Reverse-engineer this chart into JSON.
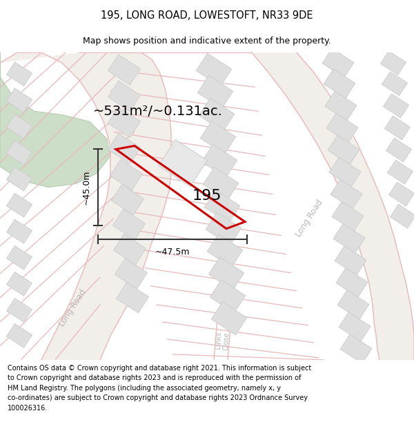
{
  "title_line1": "195, LONG ROAD, LOWESTOFT, NR33 9DE",
  "title_line2": "Map shows position and indicative extent of the property.",
  "footer_text": "Contains OS data © Crown copyright and database right 2021. This information is subject\nto Crown copyright and database rights 2023 and is reproduced with the permission of\nHM Land Registry. The polygons (including the associated geometry, namely x, y\nco-ordinates) are subject to Crown copyright and database rights 2023 Ordnance Survey\n100026316.",
  "map_bg": "#f7f4f0",
  "road_line_color": "#e8b8b8",
  "road_line_lw": 1.0,
  "building_color": "#dedede",
  "building_outline": "#cccccc",
  "green_color": "#cddec8",
  "green_outline": "#b8ccb4",
  "plot_color": "#cc0000",
  "plot_lw": 2.2,
  "area_text": "~531m²/~0.131ac.",
  "dim_v_text": "~45.0m",
  "dim_h_text": "~47.5m",
  "number_text": "195",
  "road_label_color": "#b8b8b8",
  "annot_color": "#333333",
  "title_fontsize": 10.5,
  "subtitle_fontsize": 9.0,
  "footer_fontsize": 7.0,
  "area_fontsize": 14,
  "num_fontsize": 16,
  "dim_fontsize": 9,
  "road_label_fontsize": 8.5
}
